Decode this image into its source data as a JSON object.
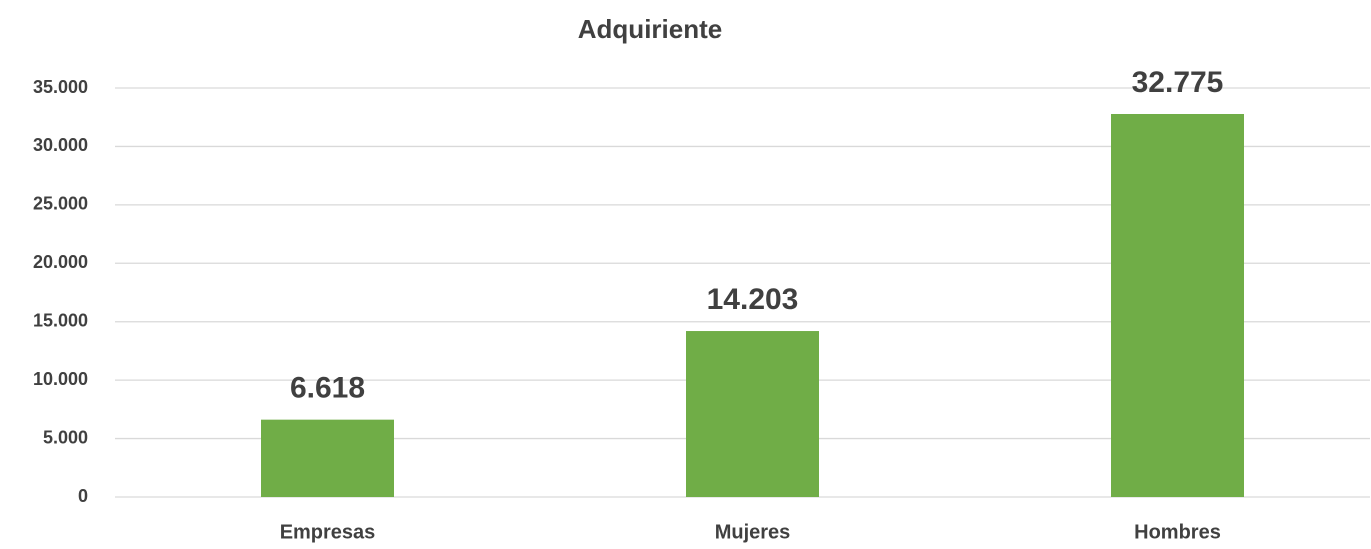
{
  "chart_data": {
    "type": "bar",
    "title": "Adquiriente",
    "categories": [
      "Empresas",
      "Mujeres",
      "Hombres"
    ],
    "values": [
      6618,
      14203,
      32775
    ],
    "value_labels": [
      "6.618",
      "14.203",
      "32.775"
    ],
    "color": "#70ad47",
    "ylim": [
      0,
      35000
    ],
    "yticks": [
      0,
      {
        "value": 5000,
        "label": "5.000"
      },
      {
        "value": 10000,
        "label": "10.000"
      },
      {
        "value": 15000,
        "label": "15.000"
      },
      {
        "value": 20000,
        "label": "20.000"
      },
      {
        "value": 25000,
        "label": "25.000"
      },
      {
        "value": 30000,
        "label": "30.000"
      },
      {
        "value": 35000,
        "label": "35.000"
      }
    ],
    "grid": true
  }
}
